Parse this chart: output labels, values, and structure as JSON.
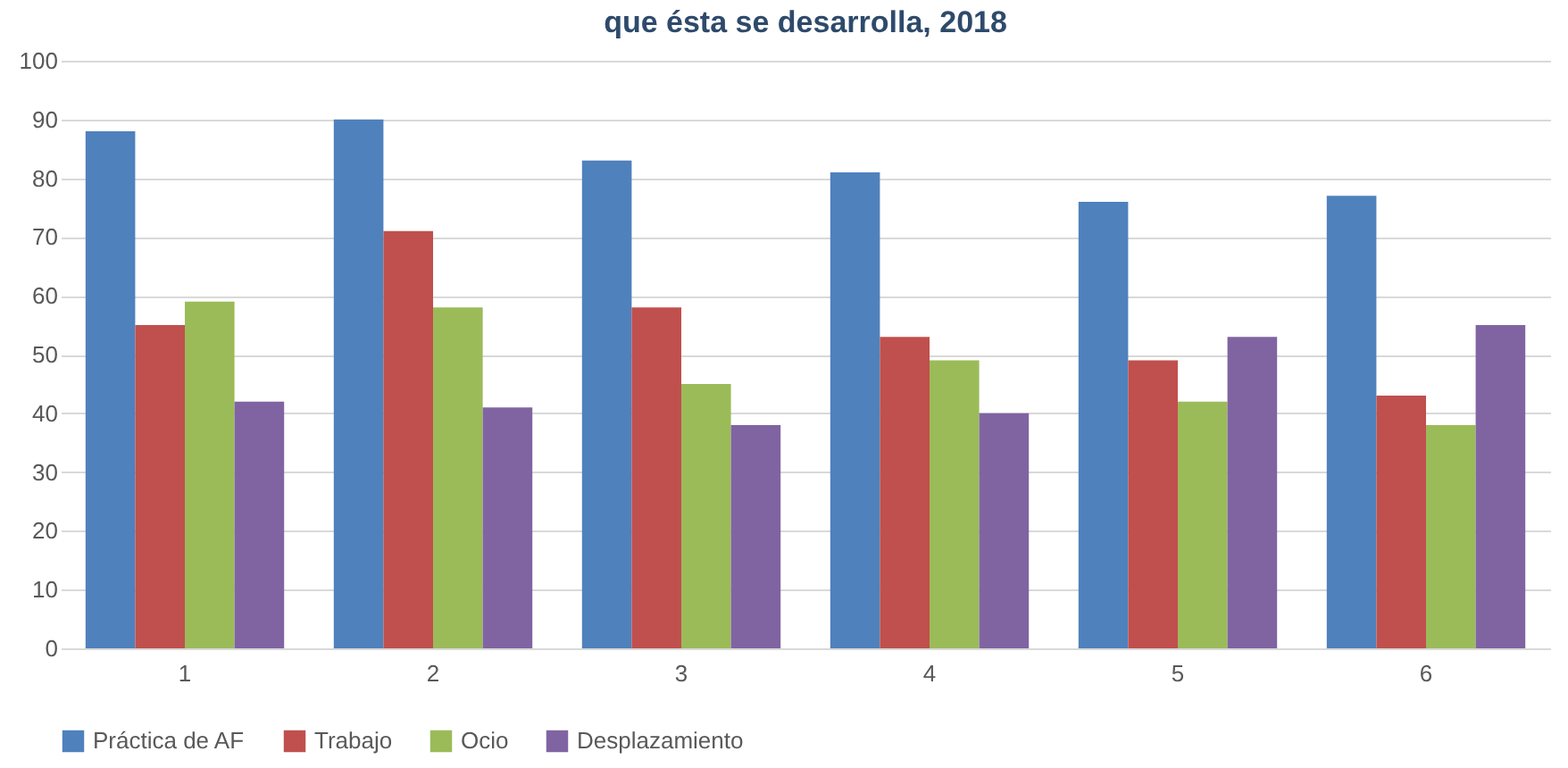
{
  "chart_data": {
    "type": "bar",
    "title": "que ésta se desarrolla, 2018",
    "categories": [
      "1",
      "2",
      "3",
      "4",
      "5",
      "6"
    ],
    "series": [
      {
        "name": "Práctica de AF",
        "color": "#4f81bd",
        "values": [
          88,
          90,
          83,
          81,
          76,
          77
        ]
      },
      {
        "name": "Trabajo",
        "color": "#c0504d",
        "values": [
          55,
          71,
          58,
          53,
          49,
          43
        ]
      },
      {
        "name": "Ocio",
        "color": "#9bbb59",
        "values": [
          59,
          58,
          45,
          49,
          42,
          38
        ]
      },
      {
        "name": "Desplazamiento",
        "color": "#8064a2",
        "values": [
          42,
          41,
          38,
          40,
          53,
          55
        ]
      }
    ],
    "ylim": [
      0,
      100
    ],
    "yticks": [
      0,
      10,
      20,
      30,
      40,
      50,
      60,
      70,
      80,
      90,
      100
    ],
    "grid": "y",
    "legend": "bottom"
  }
}
